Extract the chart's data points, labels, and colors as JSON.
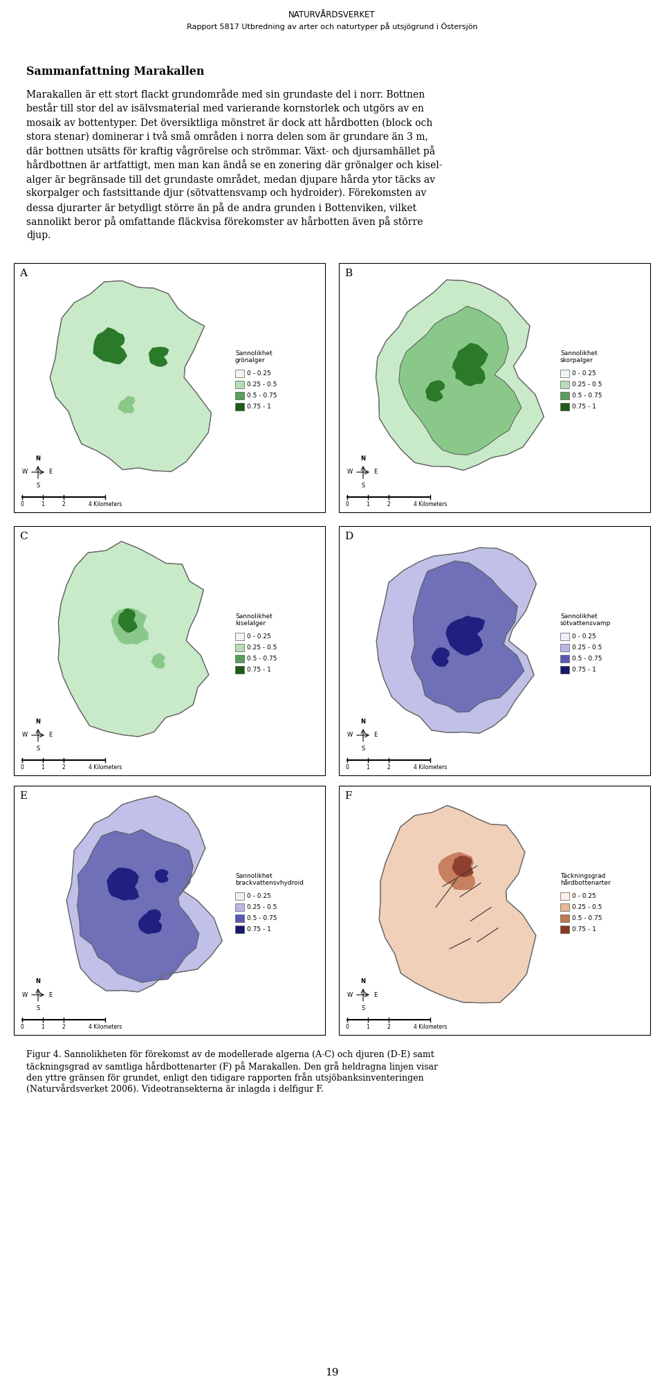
{
  "page_title_line1": "NATURVÅRDSVERKET",
  "page_title_line2": "Rapport 5817 Utbredning av arter och naturtyper på utsjögrund i Östersjön",
  "section_title": "Sammanfattning Marakallen",
  "body_text": [
    "Marakallen är ett stort flackt grundområde med sin grundaste del i norr. Bottnen",
    "består till stor del av isälvsmaterial med varierande kornstorlek och utgörs av en",
    "mosaik av bottentyper. Det översiktliga mönstret är dock att hårdbotten (block och",
    "stora stenar) dominerar i två små områden i norra delen som är grundare än 3 m,",
    "där bottnen utsätts för kraftig vågrörelse och strömmar. Växt- och djursamhället på",
    "hårdbottnen är artfattigt, men man kan ändå se en zonering där grönalger och kisel-",
    "alger är begränsade till det grundaste området, medan djupare hårda ytor täcks av",
    "skorpalger och fastsittande djur (sötvattensvamp och hydroider). Förekomsten av",
    "dessa djurarter är betydligt större än på de andra grunden i Bottenviken, vilket",
    "sannolikt beror på omfattande fläckvisa förekomster av hårbotten även på större",
    "djup."
  ],
  "figure_caption_lines": [
    "Figur 4. Sannolikheten för förekomst av de modellerade algerna (A-C) och djuren (D-E) samt",
    "täckningsgrad av samtliga hårdbottenarter (F) på Marakallen. Den grå heldragna linjen visar",
    "den yttre gränsen för grundet, enligt den tidigare rapporten från utsjöbanksinventeringen",
    "(Naturvårdsverket 2006). Videotransekterna är inlagda i delfigur F."
  ],
  "page_number": "19",
  "background_color": "#ffffff",
  "text_color": "#000000",
  "title_fontsize": 8.5,
  "body_fontsize": 10.0,
  "section_title_fontsize": 11.5,
  "caption_fontsize": 9.0,
  "legend_titles": {
    "A": "Sannolikhet\ngrönalger",
    "B": "Sannolikhet\nskorpalger",
    "C": "Sannolikhet\nkiselalger",
    "D": "Sannolikhet\nsötvattensvamp",
    "E": "Sannolikhet\nbrackvattensvhydroid",
    "F": "Täckningsgrad\nhårdbottenarter"
  },
  "legend_colors_green": [
    "#f0f9f0",
    "#b8ddb8",
    "#5a9e5a",
    "#1a5c1a"
  ],
  "legend_colors_blue": [
    "#f0f0fa",
    "#b8b8e8",
    "#5858b8",
    "#18186a"
  ],
  "legend_colors_red": [
    "#fdf0e8",
    "#e8b898",
    "#c07850",
    "#8a3820"
  ],
  "legend_labels": [
    "0 - 0.25",
    "0.25 - 0.5",
    "0.5 - 0.75",
    "0.75 - 1"
  ],
  "panel_bg_white": "#ffffff",
  "outer_blob_color_green": "#c8eac8",
  "outer_blob_color_blue": "#c0c0e8",
  "outer_blob_color_red": "#f0d0b8",
  "inner_mid_green": "#8ac88a",
  "inner_dark_green": "#2a7a2a",
  "inner_mid_blue": "#7070b8",
  "inner_dark_blue": "#202080",
  "inner_mid_red": "#c88060",
  "inner_dark_red": "#904030"
}
